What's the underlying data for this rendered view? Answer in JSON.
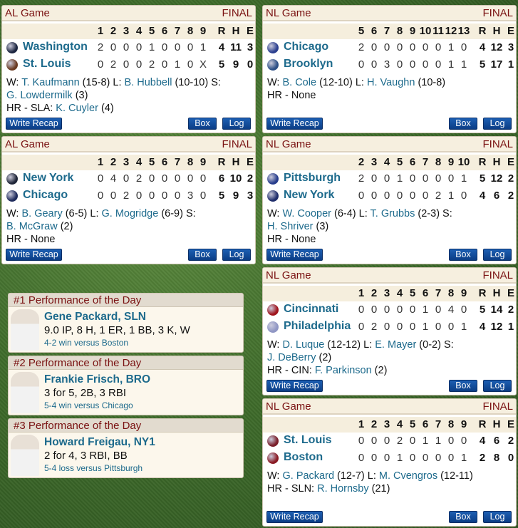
{
  "colors": {
    "header_text": "#7a1212",
    "link": "#1d6a8c",
    "button": "#0b3d85"
  },
  "buttons": {
    "recap": "Write Recap",
    "box": "Box",
    "log": "Log"
  },
  "games": [
    {
      "league": "AL Game",
      "status": "FINAL",
      "innings": [
        "1",
        "2",
        "3",
        "4",
        "5",
        "6",
        "7",
        "8",
        "9"
      ],
      "totals_hdr": [
        "R",
        "H",
        "E"
      ],
      "teams": [
        {
          "name": "Washington",
          "logo_color": "#1c2540",
          "line": [
            "2",
            "0",
            "0",
            "0",
            "1",
            "0",
            "0",
            "0",
            "1"
          ],
          "totals": [
            "4",
            "11",
            "3"
          ]
        },
        {
          "name": "St. Louis",
          "logo_color": "#6a3a22",
          "line": [
            "0",
            "2",
            "0",
            "0",
            "2",
            "0",
            "1",
            "0",
            "X"
          ],
          "totals": [
            "5",
            "9",
            "0"
          ]
        }
      ],
      "summary": [
        [
          {
            "t": "W: "
          },
          {
            "t": "T. Kaufmann",
            "link": true
          },
          {
            "t": " (15-8) L: "
          },
          {
            "t": "B. Hubbell",
            "link": true
          },
          {
            "t": " (10-10) S:"
          }
        ],
        [
          {
            "t": "G. Lowdermilk",
            "link": true
          },
          {
            "t": " (3)"
          }
        ],
        [
          {
            "t": "HR - SLA: "
          },
          {
            "t": "K. Cuyler",
            "link": true
          },
          {
            "t": " (4)"
          }
        ]
      ]
    },
    {
      "league": "NL Game",
      "status": "FINAL",
      "innings": [
        "5",
        "6",
        "7",
        "8",
        "9",
        "10",
        "11",
        "12",
        "13"
      ],
      "totals_hdr": [
        "R",
        "H",
        "E"
      ],
      "teams": [
        {
          "name": "Chicago",
          "logo_color": "#2b3f8f",
          "line": [
            "2",
            "0",
            "0",
            "0",
            "0",
            "0",
            "0",
            "1",
            "0"
          ],
          "totals": [
            "4",
            "12",
            "3"
          ]
        },
        {
          "name": "Brooklyn",
          "logo_color": "#2d4f86",
          "line": [
            "0",
            "0",
            "3",
            "0",
            "0",
            "0",
            "0",
            "1",
            "1"
          ],
          "totals": [
            "5",
            "17",
            "1"
          ]
        }
      ],
      "summary": [
        [
          {
            "t": "W: "
          },
          {
            "t": "B. Cole",
            "link": true
          },
          {
            "t": " (12-10) L: "
          },
          {
            "t": "H. Vaughn",
            "link": true
          },
          {
            "t": " (10-8)"
          }
        ],
        [
          {
            "t": "HR - None"
          }
        ]
      ]
    },
    {
      "league": "AL Game",
      "status": "FINAL",
      "innings": [
        "1",
        "2",
        "3",
        "4",
        "5",
        "6",
        "7",
        "8",
        "9"
      ],
      "totals_hdr": [
        "R",
        "H",
        "E"
      ],
      "teams": [
        {
          "name": "New York",
          "logo_color": "#1e2538",
          "line": [
            "0",
            "4",
            "0",
            "2",
            "0",
            "0",
            "0",
            "0",
            "0"
          ],
          "totals": [
            "6",
            "10",
            "2"
          ]
        },
        {
          "name": "Chicago",
          "logo_color": "#1f2b5c",
          "line": [
            "0",
            "0",
            "2",
            "0",
            "0",
            "0",
            "0",
            "3",
            "0"
          ],
          "totals": [
            "5",
            "9",
            "3"
          ]
        }
      ],
      "summary": [
        [
          {
            "t": "W: "
          },
          {
            "t": "B. Geary",
            "link": true
          },
          {
            "t": " (6-5) L: "
          },
          {
            "t": "G. Mogridge",
            "link": true
          },
          {
            "t": " (6-9) S:"
          }
        ],
        [
          {
            "t": "B. McGraw",
            "link": true
          },
          {
            "t": " (2)"
          }
        ],
        [
          {
            "t": "HR - None"
          }
        ]
      ]
    },
    {
      "league": "NL Game",
      "status": "FINAL",
      "innings": [
        "2",
        "3",
        "4",
        "5",
        "6",
        "7",
        "8",
        "9",
        "10"
      ],
      "totals_hdr": [
        "R",
        "H",
        "E"
      ],
      "teams": [
        {
          "name": "Pittsburgh",
          "logo_color": "#263c8c",
          "line": [
            "2",
            "0",
            "0",
            "1",
            "0",
            "0",
            "0",
            "0",
            "1"
          ],
          "totals": [
            "5",
            "12",
            "2"
          ]
        },
        {
          "name": "New York",
          "logo_color": "#1f2d6b",
          "line": [
            "0",
            "0",
            "0",
            "0",
            "0",
            "0",
            "2",
            "1",
            "0"
          ],
          "totals": [
            "4",
            "6",
            "2"
          ]
        }
      ],
      "summary": [
        [
          {
            "t": "W: "
          },
          {
            "t": "W. Cooper",
            "link": true
          },
          {
            "t": " (6-4) L: "
          },
          {
            "t": "T. Grubbs",
            "link": true
          },
          {
            "t": " (2-3) S:"
          }
        ],
        [
          {
            "t": "H. Shriver",
            "link": true
          },
          {
            "t": " (3)"
          }
        ],
        [
          {
            "t": "HR - None"
          }
        ]
      ]
    },
    {
      "league": "NL Game",
      "status": "FINAL",
      "innings": [
        "1",
        "2",
        "3",
        "4",
        "5",
        "6",
        "7",
        "8",
        "9"
      ],
      "totals_hdr": [
        "R",
        "H",
        "E"
      ],
      "teams": [
        {
          "name": "Cincinnati",
          "logo_color": "#a0141c",
          "line": [
            "0",
            "0",
            "0",
            "0",
            "0",
            "1",
            "0",
            "4",
            "0"
          ],
          "totals": [
            "5",
            "14",
            "2"
          ]
        },
        {
          "name": "Philadelphia",
          "logo_color": "#8f96c4",
          "line": [
            "0",
            "2",
            "0",
            "0",
            "0",
            "1",
            "0",
            "0",
            "1"
          ],
          "totals": [
            "4",
            "12",
            "1"
          ]
        }
      ],
      "summary": [
        [
          {
            "t": "W: "
          },
          {
            "t": "D. Luque",
            "link": true
          },
          {
            "t": " (12-12) L: "
          },
          {
            "t": "E. Mayer",
            "link": true
          },
          {
            "t": " (0-2) S:"
          }
        ],
        [
          {
            "t": "J. DeBerry",
            "link": true
          },
          {
            "t": " (2)"
          }
        ],
        [
          {
            "t": "HR - CIN: "
          },
          {
            "t": "F. Parkinson",
            "link": true
          },
          {
            "t": " (2)"
          }
        ]
      ]
    },
    {
      "league": "NL Game",
      "status": "FINAL",
      "innings": [
        "1",
        "2",
        "3",
        "4",
        "5",
        "6",
        "7",
        "8",
        "9"
      ],
      "totals_hdr": [
        "R",
        "H",
        "E"
      ],
      "teams": [
        {
          "name": "St. Louis",
          "logo_color": "#7a1e2a",
          "line": [
            "0",
            "0",
            "0",
            "2",
            "0",
            "1",
            "1",
            "0",
            "0"
          ],
          "totals": [
            "4",
            "6",
            "2"
          ]
        },
        {
          "name": "Boston",
          "logo_color": "#8a1a24",
          "line": [
            "0",
            "0",
            "0",
            "1",
            "0",
            "0",
            "0",
            "0",
            "1"
          ],
          "totals": [
            "2",
            "8",
            "0"
          ]
        }
      ],
      "summary": [
        [
          {
            "t": "W: "
          },
          {
            "t": "G. Packard",
            "link": true
          },
          {
            "t": " (12-7) L: "
          },
          {
            "t": "M. Cvengros",
            "link": true
          },
          {
            "t": " (12-11)"
          }
        ],
        [
          {
            "t": "HR - SLN: "
          },
          {
            "t": "R. Hornsby",
            "link": true
          },
          {
            "t": " (21)"
          }
        ]
      ]
    }
  ],
  "performances": [
    {
      "title": "#1 Performance of the Day",
      "player": "Gene Packard, SLN",
      "line": "9.0 IP, 8 H, 1 ER, 1 BB, 3 K, W",
      "game": "4-2 win versus Boston"
    },
    {
      "title": "#2 Performance of the Day",
      "player": "Frankie Frisch, BRO",
      "line": "3 for 5, 2B, 3 RBI",
      "game": "5-4 win versus Chicago"
    },
    {
      "title": "#3 Performance of the Day",
      "player": "Howard Freigau, NY1",
      "line": "2 for 4, 3 RBI, BB",
      "game": "5-4 loss versus Pittsburgh"
    }
  ]
}
